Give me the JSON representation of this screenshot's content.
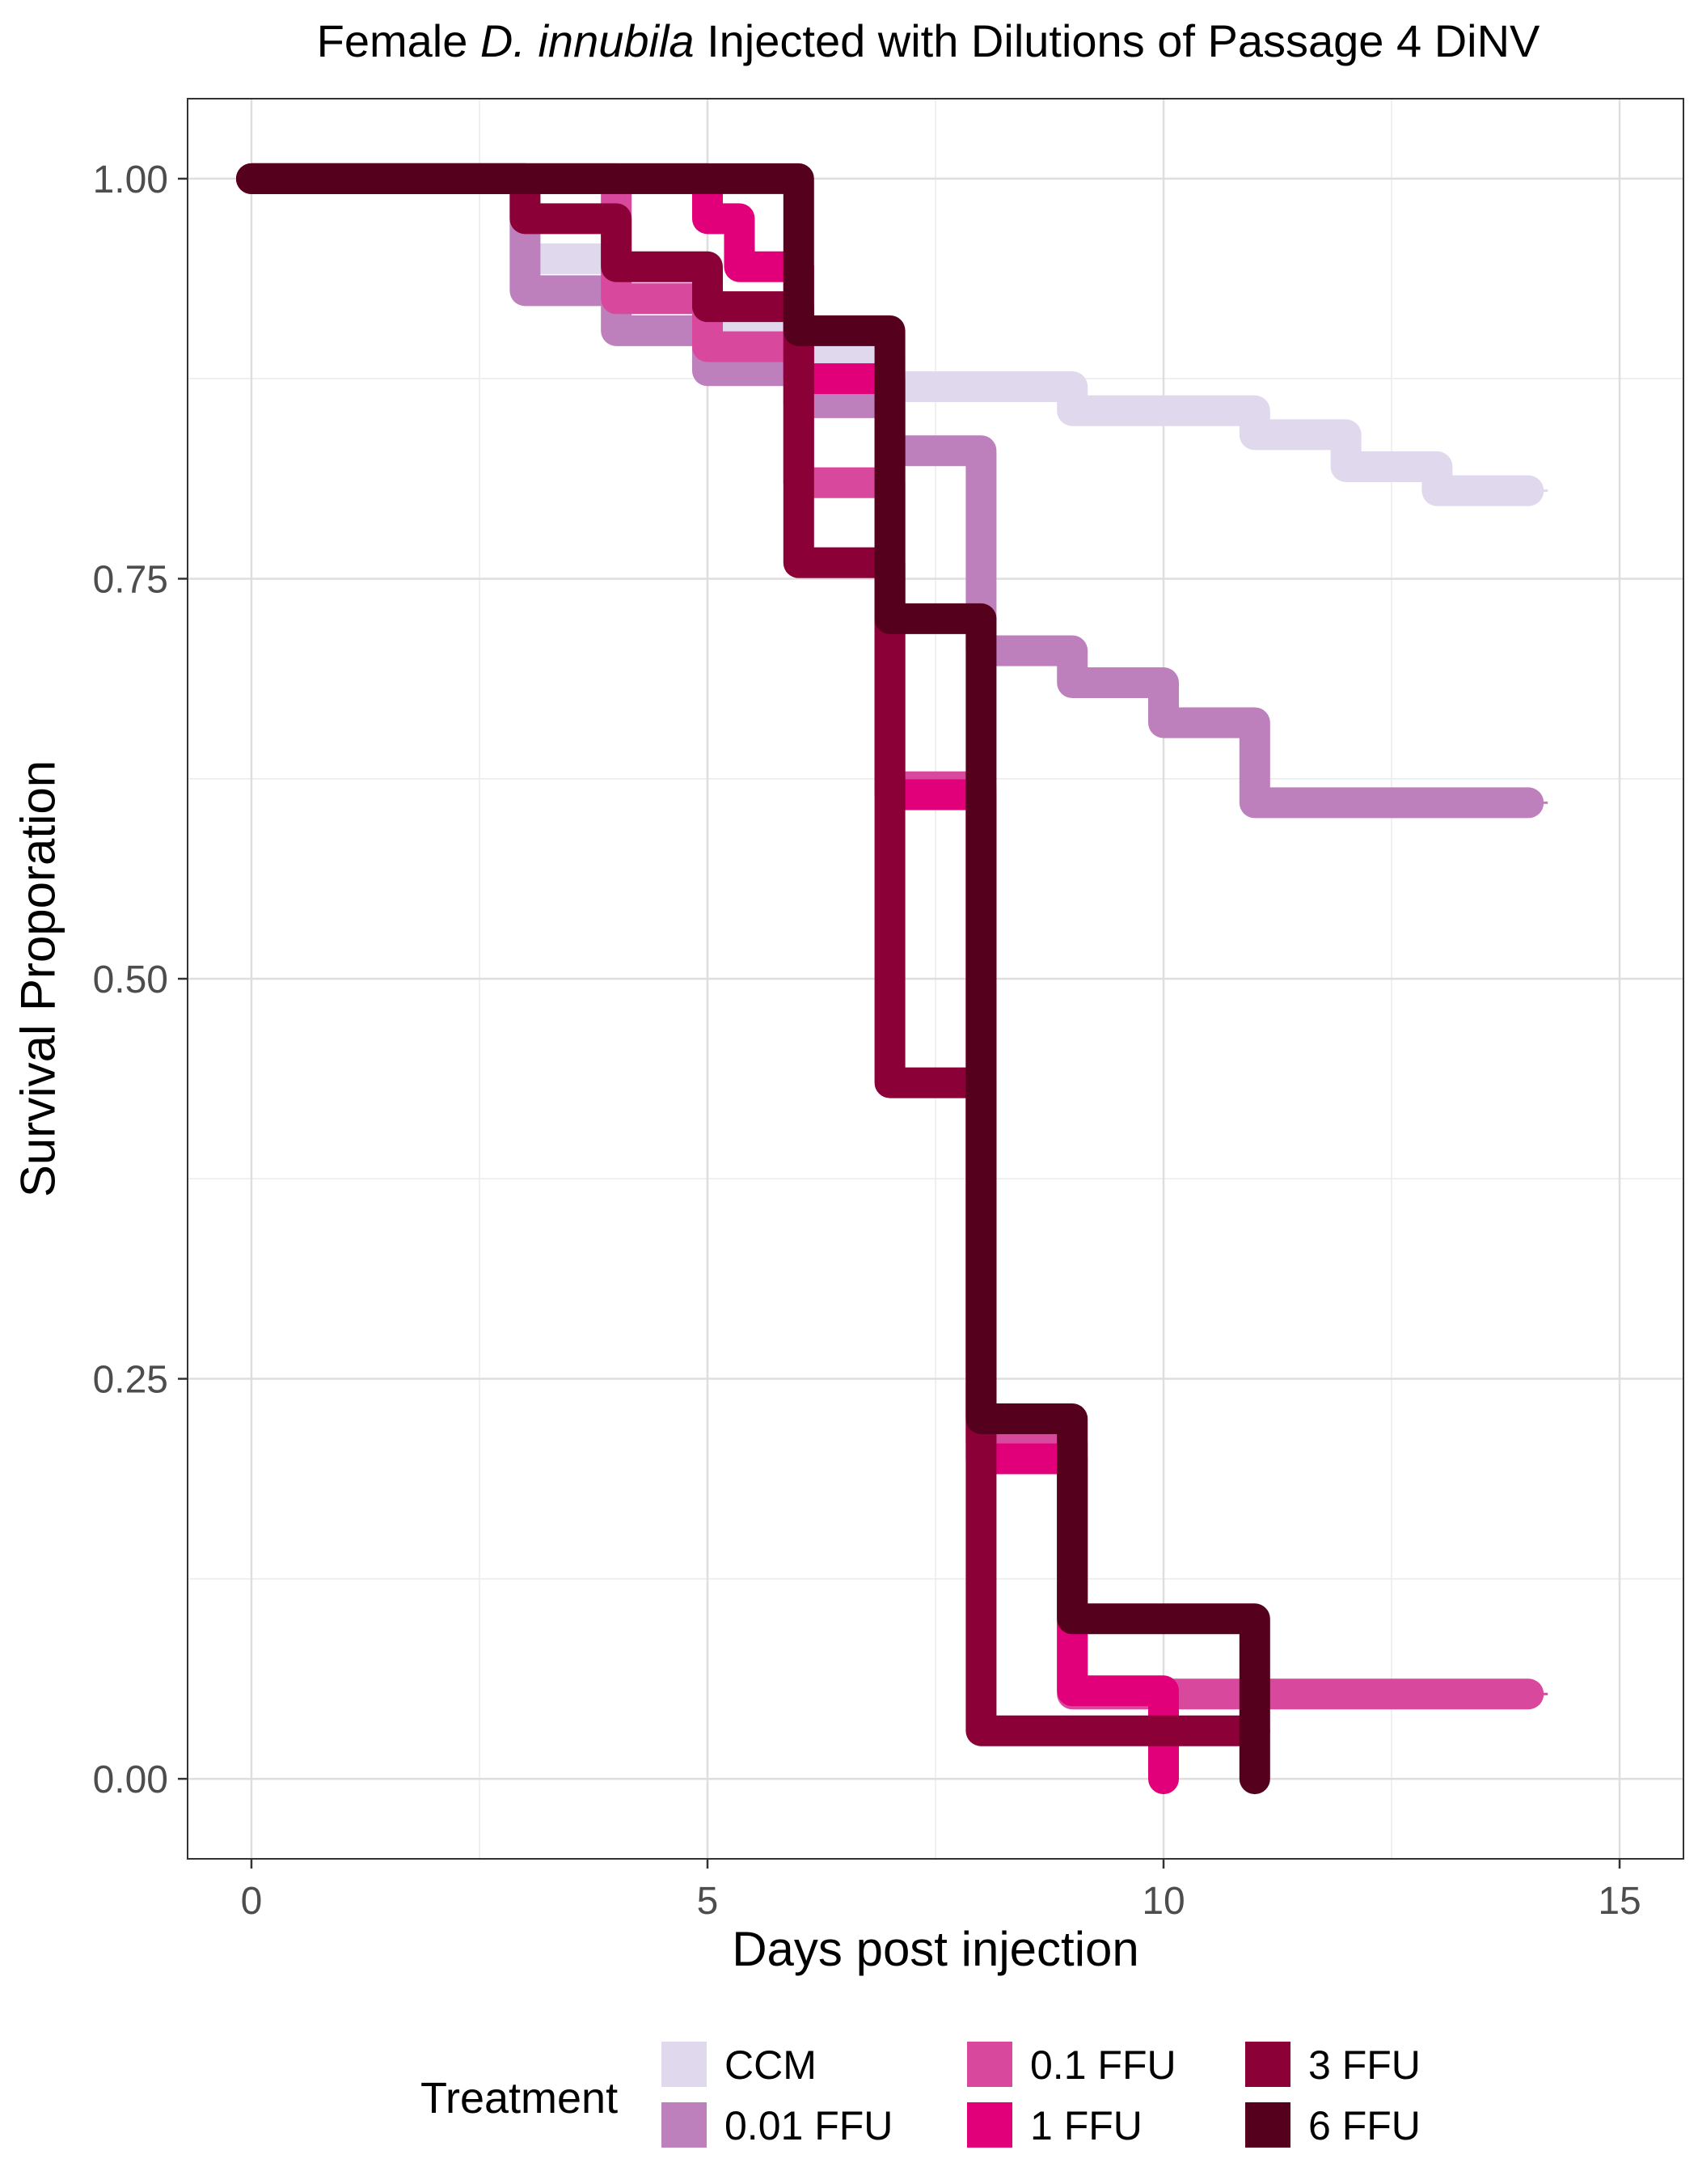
{
  "chart_data": {
    "type": "line",
    "step": true,
    "title_parts": [
      "Female ",
      "D. innubila",
      " Injected with Dilutions of Passage 4 DiNV"
    ],
    "xlabel": "Days post injection",
    "ylabel": "Survival Proporation",
    "xlim": [
      -0.7,
      15.7
    ],
    "ylim": [
      -0.05,
      1.05
    ],
    "xticks": [
      0,
      5,
      10,
      15
    ],
    "xtick_labels": [
      "0",
      "5",
      "10",
      "15"
    ],
    "yticks": [
      0,
      0.25,
      0.5,
      0.75,
      1.0
    ],
    "ytick_labels": [
      "0.00",
      "0.25",
      "0.50",
      "0.75",
      "1.00"
    ],
    "grid": true,
    "legend": {
      "title": "Treatment",
      "position": "bottom",
      "columns": 3
    },
    "series": [
      {
        "name": "CCM",
        "color": "#e0d8ec",
        "x": [
          0,
          3,
          4,
          5,
          6,
          7,
          8,
          9,
          10,
          11,
          12,
          13,
          14
        ],
        "y": [
          1.0,
          0.95,
          0.93,
          0.91,
          0.89,
          0.87,
          0.87,
          0.855,
          0.855,
          0.84,
          0.82,
          0.805,
          0.805
        ]
      },
      {
        "name": "0.01 FFU",
        "color": "#be7fbd",
        "x": [
          0,
          3,
          4,
          5,
          6,
          7,
          8,
          9,
          10,
          11,
          14
        ],
        "y": [
          1.0,
          0.93,
          0.905,
          0.88,
          0.86,
          0.83,
          0.705,
          0.685,
          0.66,
          0.61,
          0.61
        ]
      },
      {
        "name": "0.1 FFU",
        "color": "#d8499e",
        "x": [
          0,
          4,
          5,
          6,
          7,
          8,
          9,
          14
        ],
        "y": [
          1.0,
          0.925,
          0.895,
          0.81,
          0.62,
          0.21,
          0.053,
          0.053
        ]
      },
      {
        "name": "1 FFU",
        "color": "#e2007a",
        "x": [
          0,
          5,
          5.35,
          6,
          7,
          8,
          9,
          10
        ],
        "y": [
          1.0,
          0.975,
          0.945,
          0.875,
          0.615,
          0.2,
          0.055,
          0.0
        ]
      },
      {
        "name": "3 FFU",
        "color": "#8a0037",
        "x": [
          0,
          3,
          4,
          5,
          6,
          7,
          8,
          11
        ],
        "y": [
          1.0,
          0.975,
          0.945,
          0.92,
          0.76,
          0.435,
          0.03,
          0.03
        ]
      },
      {
        "name": "6 FFU",
        "color": "#55001c",
        "x": [
          0,
          6,
          7,
          8,
          9,
          11
        ],
        "y": [
          1.0,
          0.905,
          0.725,
          0.225,
          0.1,
          0.0
        ]
      }
    ],
    "censor_marks": [
      {
        "series": "CCM",
        "x": 14,
        "y": 0.805
      },
      {
        "series": "0.01 FFU",
        "x": 14,
        "y": 0.61
      },
      {
        "series": "0.1 FFU",
        "x": 14,
        "y": 0.053
      }
    ]
  }
}
